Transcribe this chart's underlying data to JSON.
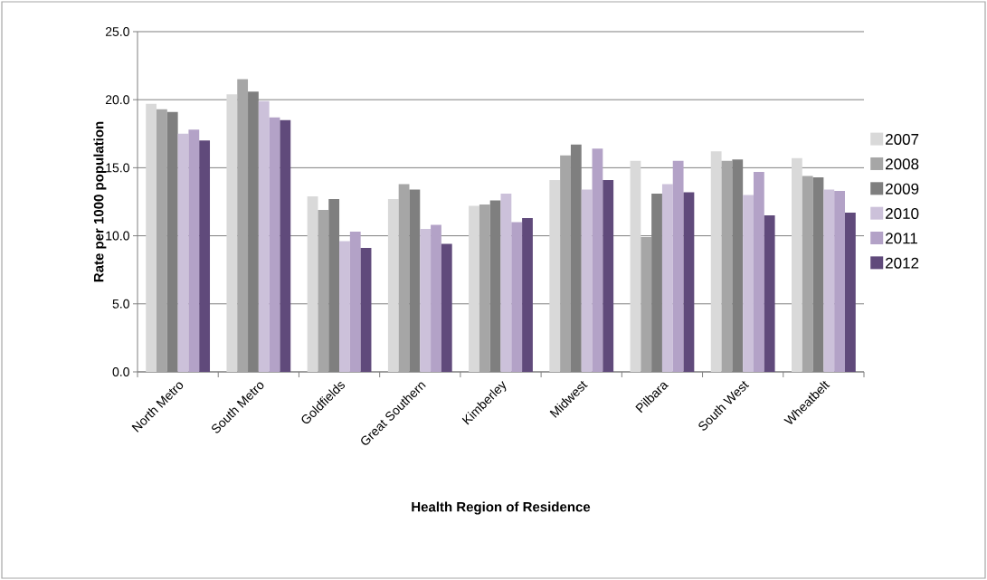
{
  "chart_data": {
    "type": "bar",
    "xlabel": "Health Region of Residence",
    "ylabel": "Rate per 1000 population",
    "categories": [
      "North Metro",
      "South Metro",
      "Goldfields",
      "Great Southern",
      "Kimberley",
      "Midwest",
      "Pilbara",
      "South West",
      "Wheatbelt"
    ],
    "series": [
      {
        "name": "2007",
        "color": "#d9d9d9",
        "values": [
          19.7,
          20.4,
          12.9,
          12.7,
          12.2,
          14.1,
          15.5,
          16.2,
          15.7
        ]
      },
      {
        "name": "2008",
        "color": "#a6a6a6",
        "values": [
          19.3,
          21.5,
          11.9,
          13.8,
          12.3,
          15.9,
          9.9,
          15.5,
          14.4
        ]
      },
      {
        "name": "2009",
        "color": "#7f7f7f",
        "values": [
          19.1,
          20.6,
          12.7,
          13.4,
          12.6,
          16.7,
          13.1,
          15.6,
          14.3
        ]
      },
      {
        "name": "2010",
        "color": "#ccc1da",
        "values": [
          17.5,
          19.9,
          9.6,
          10.5,
          13.1,
          13.4,
          13.8,
          13.0,
          13.4
        ]
      },
      {
        "name": "2011",
        "color": "#b3a2c7",
        "values": [
          17.8,
          18.7,
          10.3,
          10.8,
          11.0,
          16.4,
          15.5,
          14.7,
          13.3
        ]
      },
      {
        "name": "2012",
        "color": "#604a7b",
        "values": [
          17.0,
          18.5,
          9.1,
          9.4,
          11.3,
          14.1,
          13.2,
          11.5,
          11.7
        ]
      }
    ],
    "ylim": [
      0,
      25
    ],
    "yticks": [
      {
        "value": 0,
        "label": "0.0"
      },
      {
        "value": 5,
        "label": "5.0"
      },
      {
        "value": 10,
        "label": "10.0"
      },
      {
        "value": 15,
        "label": "15.0"
      },
      {
        "value": 20,
        "label": "20.0"
      },
      {
        "value": 25,
        "label": "25.0"
      }
    ],
    "grid": "y",
    "legend": "right"
  }
}
